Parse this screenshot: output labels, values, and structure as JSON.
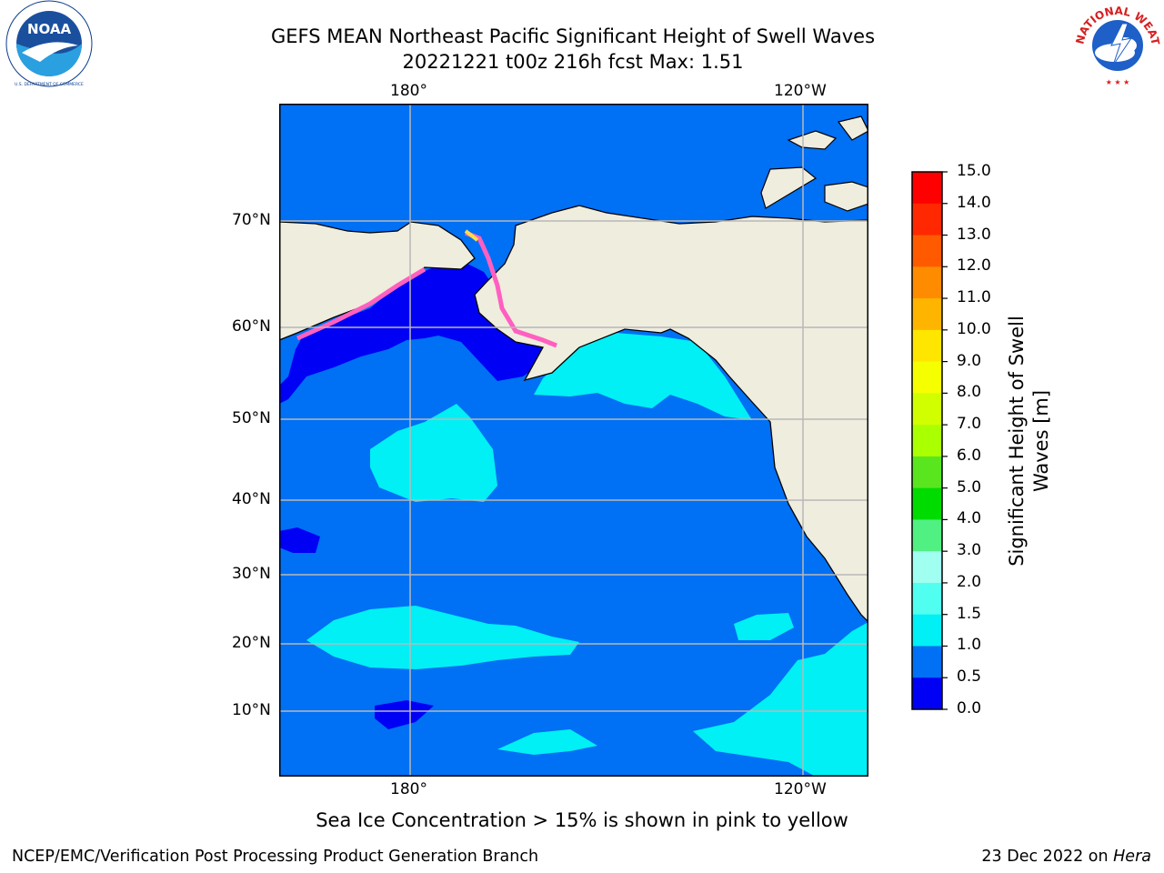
{
  "title": {
    "line1": "GEFS MEAN Northeast Pacific Significant Height of Swell Waves",
    "line2": "20221221 t00z 216h fcst   Max: 1.51"
  },
  "logos": {
    "left": {
      "icon": "noaa-logo",
      "text": "NOAA",
      "ring_text": "NATIONAL OCEANIC AND ATMOSPHERIC ADMINISTRATION · U.S. DEPARTMENT OF COMMERCE"
    },
    "right": {
      "icon": "nws-logo",
      "ring_text": "NATIONAL WEATHER SERVICE"
    }
  },
  "map": {
    "lon_labels": [
      "180°",
      "120°W"
    ],
    "lat_labels": [
      "70°N",
      "60°N",
      "50°N",
      "40°N",
      "30°N",
      "20°N",
      "10°N"
    ],
    "colors": {
      "land": "#efedde",
      "water_lt05": "#0000f5",
      "water_05_10": "#0070f5",
      "water_10_15": "#00f0f5",
      "water_15_20": "#50f5f0",
      "ice": "#ff60c0",
      "ice_high": "#ffe040",
      "grid": "#b8b8b8"
    }
  },
  "colorbar": {
    "title_line1": "Significant Height of Swell",
    "title_line2": "Waves [m]",
    "ticks": [
      "15.0",
      "14.0",
      "13.0",
      "12.0",
      "11.0",
      "10.0",
      "9.0",
      "8.0",
      "7.0",
      "6.0",
      "5.0",
      "4.0",
      "3.0",
      "2.0",
      "1.5",
      "1.0",
      "0.5",
      "0.0"
    ],
    "colors": [
      "#ff0000",
      "#ff2800",
      "#ff5a00",
      "#ff8c00",
      "#ffb400",
      "#ffe600",
      "#f5ff00",
      "#d2ff00",
      "#aaff00",
      "#5ae61e",
      "#00dc00",
      "#50f082",
      "#a0fff0",
      "#50fff0",
      "#00f0f5",
      "#0070f5",
      "#0000f5"
    ]
  },
  "caption": "Sea Ice Concentration > 15% is shown in pink to yellow",
  "footer": {
    "left": "NCEP/EMC/Verification Post Processing Product Generation Branch",
    "right_prefix": "23 Dec 2022 on ",
    "right_host": "Hera"
  }
}
